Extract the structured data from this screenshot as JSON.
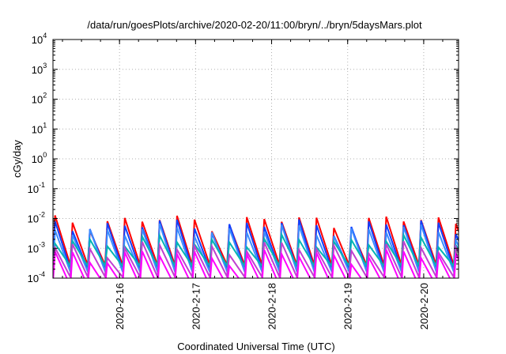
{
  "chart_data": {
    "type": "line",
    "title": "/data/run/goesPlots/archive/2020-02-20/11:00/bryn/../bryn/5daysMars.plot",
    "xlabel": "Coordinated Universal Time (UTC)",
    "ylabel": "cGy/day",
    "y_scale": "log",
    "ylim": [
      0.0001,
      10000
    ],
    "y_ticks": [
      {
        "value": 0.0001,
        "base": "10",
        "exp": "-4"
      },
      {
        "value": 0.001,
        "base": "10",
        "exp": "-3"
      },
      {
        "value": 0.01,
        "base": "10",
        "exp": "-2"
      },
      {
        "value": 0.1,
        "base": "10",
        "exp": "-1"
      },
      {
        "value": 1,
        "base": "10",
        "exp": "0"
      },
      {
        "value": 10,
        "base": "10",
        "exp": "1"
      },
      {
        "value": 100,
        "base": "10",
        "exp": "2"
      },
      {
        "value": 1000,
        "base": "10",
        "exp": "3"
      },
      {
        "value": 10000,
        "base": "10",
        "exp": "4"
      }
    ],
    "x_axis": "time",
    "xlim": [
      "2020-02-15T03:00",
      "2020-02-20T11:00"
    ],
    "x_ticks": [
      {
        "value": "2020-02-16T00:00",
        "label": "2020-2-16"
      },
      {
        "value": "2020-02-17T00:00",
        "label": "2020-2-17"
      },
      {
        "value": "2020-02-18T00:00",
        "label": "2020-2-18"
      },
      {
        "value": "2020-02-19T00:00",
        "label": "2020-2-19"
      },
      {
        "value": "2020-02-20T00:00",
        "label": "2020-2-20"
      }
    ],
    "grid": true,
    "grid_style": "dotted",
    "legend": false,
    "series": [
      {
        "color": "#ff0000",
        "low": 0.0003,
        "high": 0.0085
      },
      {
        "color": "#1040ff",
        "low": 0.00022,
        "high": 0.0062
      },
      {
        "color": "#3c8cff",
        "low": 0.00018,
        "high": 0.0042
      },
      {
        "color": "#00b4b4",
        "low": 0.00028,
        "high": 0.0018
      },
      {
        "color": "#c040d0",
        "low": 0.00012,
        "high": 0.0011
      },
      {
        "color": "#ff00ff",
        "low": 6e-05,
        "high": 0.0006
      }
    ]
  }
}
